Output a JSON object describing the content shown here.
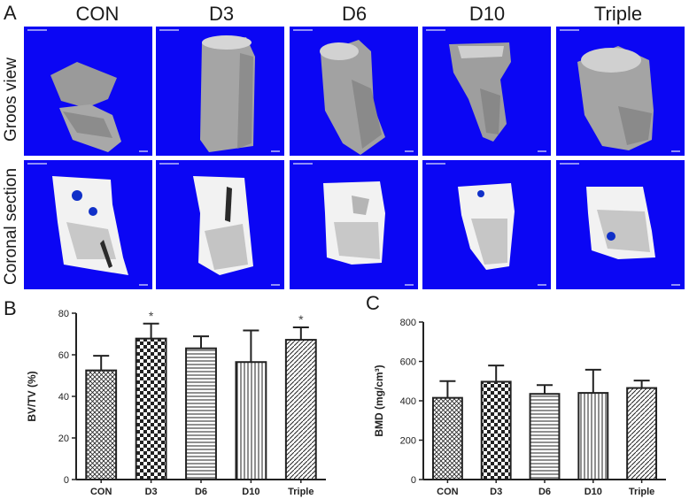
{
  "panel_labels": {
    "a": "A",
    "b": "B",
    "c": "C"
  },
  "groups": [
    "CON",
    "D3",
    "D6",
    "D10",
    "Triple"
  ],
  "row_labels": [
    "Groos view",
    "Coronal section"
  ],
  "colors": {
    "background": "#0b06f4",
    "bone": "#b9b9b9",
    "section": "#f2f2f2",
    "ink": "#222222"
  },
  "chart_data": [
    {
      "type": "bar",
      "panel": "B",
      "categories": [
        "CON",
        "D3",
        "D6",
        "D10",
        "Triple"
      ],
      "values": [
        52.5,
        67.8,
        63.1,
        56.5,
        67.2
      ],
      "errors": [
        7.0,
        7.2,
        5.8,
        15.2,
        6.0
      ],
      "annotations": [
        "",
        "*",
        "",
        "",
        "*"
      ],
      "patterns": [
        "crosshatch",
        "checker",
        "horizontal",
        "vertical",
        "diagonal"
      ],
      "ylabel": "BV/TV (%)",
      "ylim": [
        0,
        80
      ],
      "yticks": [
        "0",
        "20",
        "40",
        "60",
        "80"
      ],
      "grid": false
    },
    {
      "type": "bar",
      "panel": "C",
      "categories": [
        "CON",
        "D3",
        "D6",
        "D10",
        "Triple"
      ],
      "values": [
        415,
        497,
        435,
        440,
        465
      ],
      "errors": [
        85,
        82,
        45,
        118,
        38
      ],
      "annotations": [
        "",
        "",
        "",
        "",
        ""
      ],
      "patterns": [
        "crosshatch",
        "checker",
        "horizontal",
        "vertical",
        "diagonal"
      ],
      "ylabel": "BMD (mg/cm³)",
      "ylim": [
        0,
        800
      ],
      "yticks": [
        "0",
        "200",
        "400",
        "600",
        "800"
      ],
      "grid": false
    }
  ]
}
